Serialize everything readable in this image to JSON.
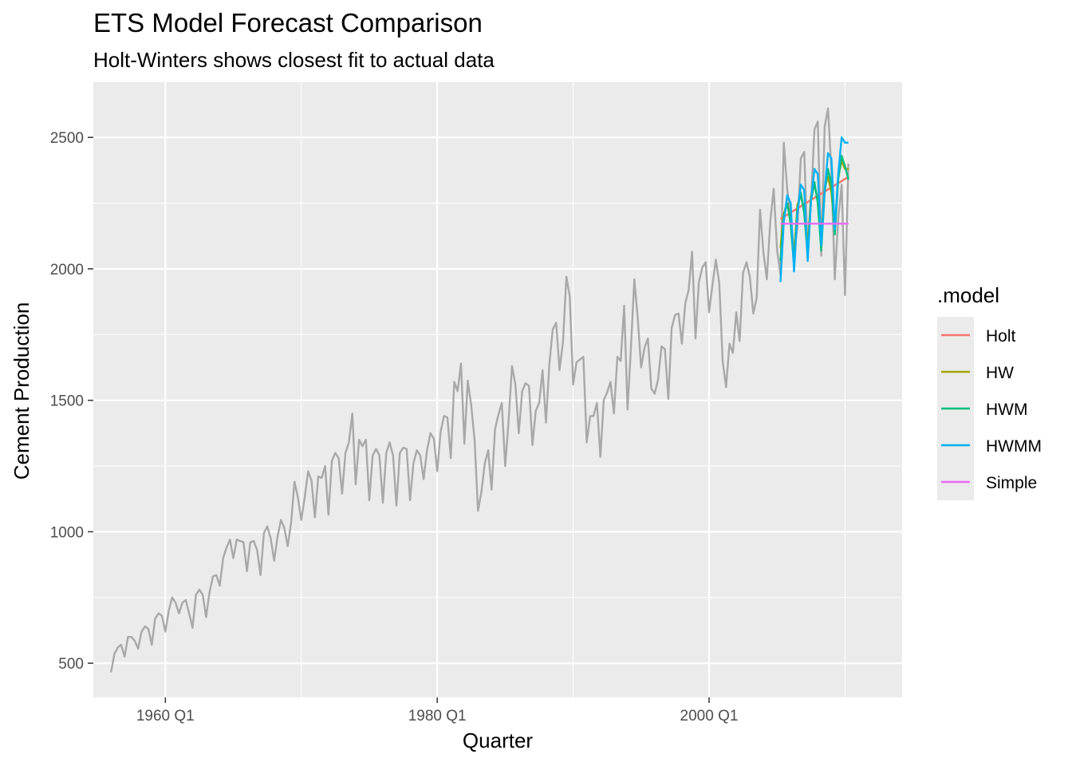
{
  "chart_data": {
    "type": "line",
    "title": "ETS Model Forecast Comparison",
    "subtitle": "Holt-Winters shows closest fit to actual data",
    "xlabel": "Quarter",
    "ylabel": "Cement Production",
    "x_ticks": [
      {
        "label": "1960 Q1",
        "value": 1960
      },
      {
        "label": "1980 Q1",
        "value": 1980
      },
      {
        "label": "2000 Q1",
        "value": 2000
      }
    ],
    "y_ticks": [
      500,
      1000,
      1500,
      2000,
      2500
    ],
    "xlim": [
      1954.7,
      2014.2
    ],
    "ylim": [
      370,
      2710
    ],
    "grid": true,
    "legend": {
      "title": ".model",
      "placement": "right"
    },
    "actual": {
      "start": 1956.0,
      "step": 0.25,
      "color": "#a8a8a8",
      "values": [
        465,
        535,
        560,
        570,
        525,
        600,
        600,
        585,
        555,
        620,
        640,
        630,
        570,
        670,
        690,
        680,
        620,
        700,
        750,
        730,
        690,
        730,
        740,
        690,
        635,
        760,
        780,
        760,
        675,
        770,
        830,
        835,
        795,
        900,
        940,
        970,
        900,
        970,
        965,
        960,
        850,
        960,
        965,
        930,
        835,
        995,
        1020,
        975,
        890,
        980,
        1045,
        1015,
        945,
        1035,
        1190,
        1130,
        1045,
        1130,
        1230,
        1195,
        1055,
        1210,
        1205,
        1250,
        1065,
        1270,
        1300,
        1280,
        1145,
        1300,
        1340,
        1450,
        1180,
        1350,
        1325,
        1350,
        1120,
        1290,
        1315,
        1290,
        1110,
        1300,
        1340,
        1290,
        1100,
        1300,
        1320,
        1315,
        1120,
        1260,
        1310,
        1290,
        1200,
        1310,
        1375,
        1355,
        1230,
        1380,
        1440,
        1435,
        1280,
        1570,
        1535,
        1640,
        1335,
        1575,
        1480,
        1350,
        1080,
        1150,
        1260,
        1310,
        1160,
        1390,
        1445,
        1490,
        1250,
        1420,
        1630,
        1560,
        1375,
        1535,
        1565,
        1555,
        1330,
        1460,
        1490,
        1615,
        1415,
        1640,
        1770,
        1795,
        1615,
        1720,
        1970,
        1895,
        1560,
        1645,
        1655,
        1665,
        1340,
        1440,
        1440,
        1490,
        1285,
        1500,
        1530,
        1570,
        1450,
        1665,
        1650,
        1860,
        1465,
        1700,
        1960,
        1815,
        1625,
        1700,
        1735,
        1545,
        1525,
        1580,
        1705,
        1695,
        1505,
        1775,
        1825,
        1830,
        1715,
        1870,
        1920,
        2065,
        1735,
        1950,
        2005,
        2025,
        1835,
        1940,
        2035,
        1945,
        1650,
        1550,
        1715,
        1680,
        1835,
        1725,
        1985,
        2025,
        1970,
        1830,
        1890,
        2225,
        2060,
        1960,
        2180,
        2305,
        2075,
        1975,
        2480,
        2300,
        2205,
        2060,
        2160,
        2420,
        2445,
        2065,
        2255,
        2530,
        2560,
        2050,
        2540,
        2610,
        2370,
        1960,
        2190,
        2320,
        1900,
        2400
      ]
    },
    "forecast_start": 2005.25,
    "forecast_step": 0.25,
    "series": [
      {
        "name": "Holt",
        "color": "#F8766D",
        "values": [
          2190,
          2198,
          2206,
          2214,
          2222,
          2230,
          2238,
          2246,
          2254,
          2262,
          2270,
          2278,
          2286,
          2294,
          2302,
          2310,
          2318,
          2326,
          2334,
          2342,
          2350
        ]
      },
      {
        "name": "HW",
        "color": "#A3A500",
        "values": [
          2080,
          2210,
          2250,
          2190,
          2050,
          2245,
          2280,
          2220,
          2085,
          2280,
          2320,
          2260,
          2110,
          2310,
          2350,
          2290,
          2150,
          2350,
          2410,
          2380,
          2380
        ]
      },
      {
        "name": "HWM",
        "color": "#00BF7D",
        "values": [
          2030,
          2200,
          2250,
          2170,
          2010,
          2230,
          2290,
          2210,
          2050,
          2260,
          2330,
          2250,
          2070,
          2290,
          2380,
          2320,
          2130,
          2340,
          2430,
          2390,
          2340
        ]
      },
      {
        "name": "HWMM",
        "color": "#00B0F6",
        "values": [
          1950,
          2180,
          2280,
          2250,
          1990,
          2210,
          2320,
          2300,
          2030,
          2260,
          2380,
          2360,
          2090,
          2300,
          2440,
          2420,
          2150,
          2360,
          2500,
          2480,
          2480
        ]
      },
      {
        "name": "Simple",
        "color": "#E76BF3",
        "values": [
          2172,
          2172,
          2172,
          2172,
          2172,
          2172,
          2172,
          2172,
          2172,
          2172,
          2172,
          2172,
          2172,
          2172,
          2172,
          2172,
          2172,
          2172,
          2172,
          2172,
          2172
        ]
      }
    ]
  }
}
